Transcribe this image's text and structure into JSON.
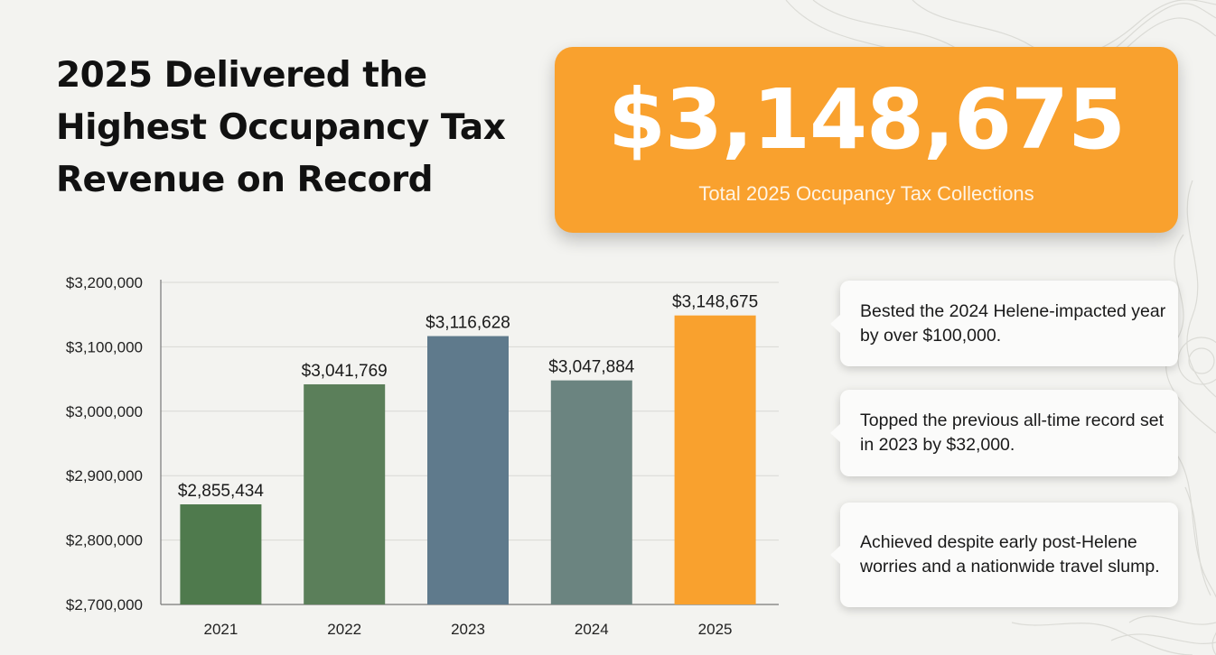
{
  "headline": "2025 Delivered the Highest Occupancy Tax Revenue on Record",
  "stat_card": {
    "value": "$3,148,675",
    "caption": "Total 2025 Occupancy Tax Collections"
  },
  "callouts": [
    "Bested the 2024 Helene-impacted year by over $100,000.",
    "Topped the previous all-time record set in 2023 by $32,000.",
    "Achieved despite early post-Helene worries and a nationwide travel slump."
  ],
  "colors": {
    "background": "#f3f3f0",
    "accent_orange": "#f9a12e",
    "bar_2021": "#4f7a4d",
    "bar_2022": "#5b7f5a",
    "bar_2023": "#5f7a8c",
    "bar_2024": "#6b8480",
    "bar_2025": "#f9a12e"
  },
  "chart_data": {
    "type": "bar",
    "title": "",
    "xlabel": "",
    "ylabel": "",
    "categories": [
      "2021",
      "2022",
      "2023",
      "2024",
      "2025"
    ],
    "values": [
      2855434,
      3041769,
      3116628,
      3047884,
      3148675
    ],
    "data_labels": [
      "$2,855,434",
      "$3,041,769",
      "$3,116,628",
      "$3,047,884",
      "$3,148,675"
    ],
    "ylim": [
      2700000,
      3200000
    ],
    "yticks": [
      2700000,
      2800000,
      2900000,
      3000000,
      3100000,
      3200000
    ],
    "ytick_labels": [
      "$2,700,000",
      "$2,800,000",
      "$2,900,000",
      "$3,000,000",
      "$3,100,000",
      "$3,200,000"
    ],
    "grid": true,
    "legend": "none"
  }
}
